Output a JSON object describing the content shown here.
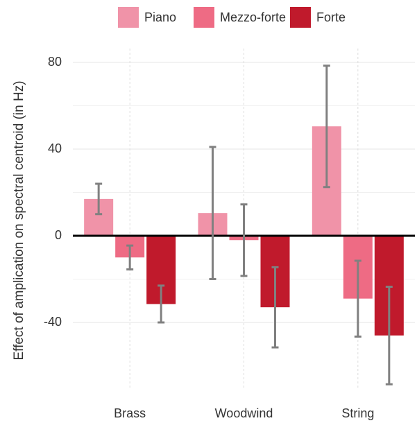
{
  "chart_data": {
    "type": "bar",
    "y_label": "Effect of amplication on spectral centroid (in Hz)",
    "categories": [
      "Brass",
      "Woodwind",
      "String"
    ],
    "series": [
      {
        "name": "Piano",
        "color": "#f093a8",
        "values": [
          17,
          10.5,
          50.5
        ],
        "errors": [
          7,
          30.5,
          28
        ]
      },
      {
        "name": "Mezzo-forte",
        "color": "#ee6b84",
        "values": [
          -10,
          -2,
          -29
        ],
        "errors": [
          5.5,
          16.5,
          17.5
        ]
      },
      {
        "name": "Forte",
        "color": "#c01a2c",
        "values": [
          -31.5,
          -33,
          -46
        ],
        "errors": [
          8.5,
          18.5,
          22.5
        ]
      }
    ],
    "ylim": [
      -70.4,
      86.4
    ],
    "yticks": [
      -40,
      0,
      40,
      80
    ],
    "grid": true,
    "legend": "top",
    "error_color": "#808080"
  }
}
